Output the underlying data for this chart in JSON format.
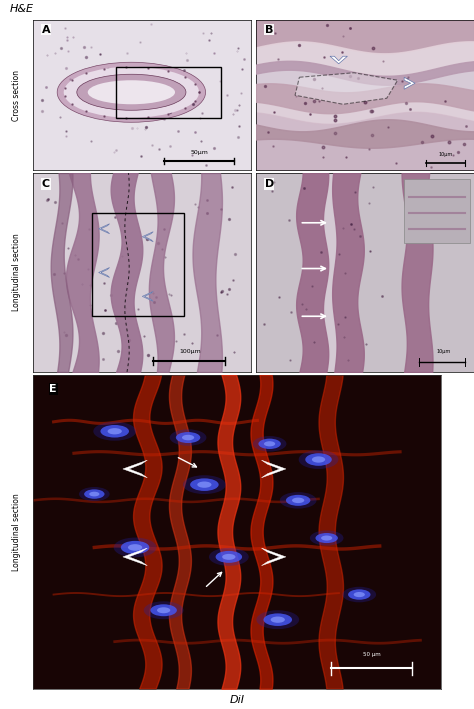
{
  "title_top": "H&E",
  "title_bottom": "DiI",
  "label_cross": "Cross section",
  "label_long_C": "Longitudinal section",
  "label_long_E": "Longitudinal section",
  "fig_width": 4.74,
  "fig_height": 7.09,
  "bg_color": "#ffffff",
  "scalebar_A": "50μm",
  "scalebar_B": "10μm",
  "scalebar_C": "100μm",
  "scalebar_E": "50 μm",
  "panel_A_bg": "#e8e2e8",
  "panel_B_bg": "#d8ccd8",
  "panel_C_bg": "#ddd5dd",
  "panel_D_bg": "#ccc0cc",
  "panel_E_bg": "#150505"
}
